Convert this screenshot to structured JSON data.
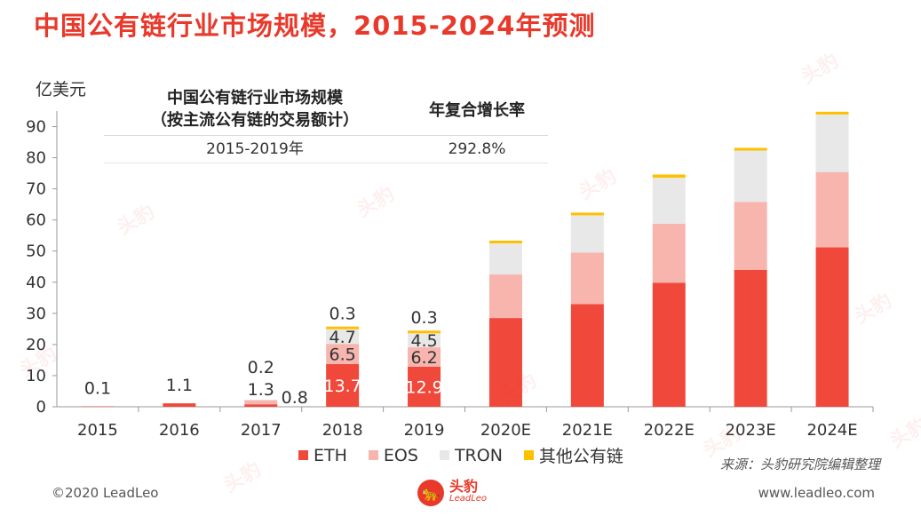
{
  "title": "中国公有链行业市场规模，2015-2024年预测",
  "unit_label": "亿美元",
  "cagr_table": {
    "header_col1_line1": "中国公有链行业市场规模",
    "header_col1_line2": "（按主流公有链的交易额计）",
    "header_col2": "年复合增长率",
    "row_period": "2015-2019年",
    "row_rate": "292.8%"
  },
  "chart_data": {
    "type": "bar",
    "stacked": true,
    "categories": [
      "2015",
      "2016",
      "2017",
      "2018",
      "2019",
      "2020E",
      "2021E",
      "2022E",
      "2023E",
      "2024E"
    ],
    "ylim": [
      0,
      95
    ],
    "yticks": [
      0,
      10,
      20,
      30,
      40,
      50,
      60,
      70,
      80,
      90
    ],
    "ylabel": "亿美元",
    "series": [
      {
        "name": "ETH",
        "color": "#f0483b",
        "values": [
          0.1,
          1.1,
          0.8,
          13.7,
          12.9,
          28.5,
          33.0,
          39.8,
          44.0,
          51.2
        ]
      },
      {
        "name": "EOS",
        "color": "#f7b5ae",
        "values": [
          0,
          0,
          1.3,
          6.5,
          6.2,
          14.0,
          16.5,
          19.0,
          21.8,
          24.2
        ]
      },
      {
        "name": "TRON",
        "color": "#e8e8e8",
        "values": [
          0,
          0,
          0.2,
          4.7,
          4.5,
          10.0,
          12.0,
          14.8,
          16.5,
          18.5
        ]
      },
      {
        "name": "其他公有链",
        "color": "#ffc000",
        "values": [
          0,
          0,
          0,
          0.3,
          0.3,
          0.6,
          0.8,
          1.0,
          0.7,
          0.8
        ]
      }
    ],
    "data_labels": [
      {
        "category": "2015",
        "series": "ETH",
        "text": "0.1"
      },
      {
        "category": "2016",
        "series": "ETH",
        "text": "1.1"
      },
      {
        "category": "2017",
        "series": "ETH",
        "text": "0.8"
      },
      {
        "category": "2017",
        "series": "EOS",
        "text": "1.3"
      },
      {
        "category": "2017",
        "series": "TRON",
        "text": "0.2"
      },
      {
        "category": "2018",
        "series": "ETH",
        "text": "13.7"
      },
      {
        "category": "2018",
        "series": "EOS",
        "text": "6.5"
      },
      {
        "category": "2018",
        "series": "TRON",
        "text": "4.7"
      },
      {
        "category": "2018",
        "series": "其他公有链",
        "text": "0.3"
      },
      {
        "category": "2019",
        "series": "ETH",
        "text": "12.9"
      },
      {
        "category": "2019",
        "series": "EOS",
        "text": "6.2"
      },
      {
        "category": "2019",
        "series": "TRON",
        "text": "4.5"
      },
      {
        "category": "2019",
        "series": "其他公有链",
        "text": "0.3"
      }
    ],
    "legend_position": "bottom"
  },
  "source": "来源：头豹研究院编辑整理",
  "footer": {
    "copyright": "©2020 LeadLeo",
    "website": "www.leadleo.com",
    "logo_cn": "头豹",
    "logo_en": "LeadLeo"
  },
  "watermark_text": "头豹"
}
